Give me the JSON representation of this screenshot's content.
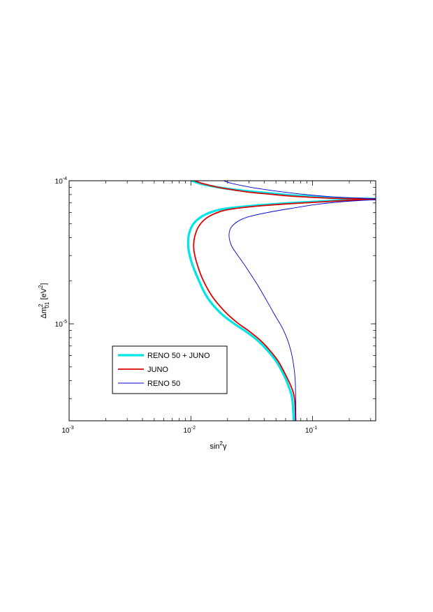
{
  "chart_data": {
    "type": "line",
    "xlabel": {
      "base": "sin",
      "sup": "2",
      "tail": "γ"
    },
    "ylabel": {
      "pre": "Δm",
      "sup": "2",
      "sub": "01",
      "post": " [eV",
      "sup2": "2",
      "close": "]"
    },
    "x_scale": "log",
    "y_scale": "log",
    "xlim": [
      0.001,
      0.33
    ],
    "ylim": [
      2.1e-06,
      0.0001
    ],
    "x_ticks": [
      {
        "value": 0.001,
        "base": "10",
        "exp": "-3"
      },
      {
        "value": 0.01,
        "base": "10",
        "exp": "-2"
      },
      {
        "value": 0.1,
        "base": "10",
        "exp": "-1"
      }
    ],
    "y_ticks": [
      {
        "value": 1e-05,
        "base": "10",
        "exp": "-5"
      },
      {
        "value": 0.0001,
        "base": "10",
        "exp": "-4"
      }
    ],
    "grid": false,
    "legend_position": "bottom-left",
    "series": [
      {
        "name": "RENO 50 + JUNO",
        "color": "#00e5e5",
        "width": 3.2,
        "x": [
          0.07,
          0.068,
          0.064,
          0.058,
          0.05,
          0.042,
          0.035,
          0.028,
          0.022,
          0.017,
          0.0135,
          0.0115,
          0.0102,
          0.0096,
          0.0095,
          0.0098,
          0.0106,
          0.0122,
          0.0148,
          0.0185,
          0.03,
          0.06,
          0.12,
          0.2,
          0.33
        ],
        "y": [
          2.1e-06,
          3e-06,
          3.6e-06,
          4.4e-06,
          5.5e-06,
          6.6e-06,
          7.7e-06,
          8.9e-06,
          1.02e-05,
          1.22e-05,
          1.55e-05,
          2.05e-05,
          2.65e-05,
          3.25e-05,
          3.85e-05,
          4.45e-05,
          5.05e-05,
          5.6e-05,
          6.05e-05,
          6.35e-05,
          6.65e-05,
          6.95e-05,
          7.18e-05,
          7.35e-05,
          7.45e-05
        ]
      },
      {
        "name": "",
        "color": "#00e5e5",
        "width": 3.2,
        "x": [
          0.0102,
          0.011,
          0.0125,
          0.015,
          0.019,
          0.026,
          0.04,
          0.06,
          0.09,
          0.13,
          0.2,
          0.33
        ],
        "y": [
          0.0001,
          9.75e-05,
          9.45e-05,
          9.15e-05,
          8.85e-05,
          8.55e-05,
          8.25e-05,
          7.98e-05,
          7.78e-05,
          7.62e-05,
          7.52e-05,
          7.46e-05
        ]
      },
      {
        "name": "JUNO",
        "color": "#dd0000",
        "width": 1.8,
        "x": [
          0.0725,
          0.071,
          0.067,
          0.06,
          0.052,
          0.044,
          0.037,
          0.03,
          0.024,
          0.019,
          0.015,
          0.0125,
          0.0112,
          0.0106,
          0.0106,
          0.011,
          0.0118,
          0.0133,
          0.0158,
          0.0195,
          0.031,
          0.06,
          0.12,
          0.2,
          0.33
        ],
        "y": [
          2.1e-06,
          3e-06,
          3.6e-06,
          4.4e-06,
          5.5e-06,
          6.6e-06,
          7.7e-06,
          8.9e-06,
          1.02e-05,
          1.22e-05,
          1.55e-05,
          2.05e-05,
          2.65e-05,
          3.25e-05,
          3.8e-05,
          4.35e-05,
          4.9e-05,
          5.45e-05,
          5.9e-05,
          6.25e-05,
          6.58e-05,
          6.88e-05,
          7.12e-05,
          7.3e-05,
          7.42e-05
        ]
      },
      {
        "name": "",
        "color": "#dd0000",
        "width": 1.8,
        "x": [
          0.0108,
          0.012,
          0.014,
          0.017,
          0.022,
          0.03,
          0.045,
          0.065,
          0.1,
          0.15,
          0.22,
          0.33
        ],
        "y": [
          0.0001,
          9.65e-05,
          9.32e-05,
          8.98e-05,
          8.65e-05,
          8.32e-05,
          8.05e-05,
          7.82e-05,
          7.65e-05,
          7.54e-05,
          7.48e-05,
          7.44e-05
        ]
      },
      {
        "name": "RENO 50",
        "color": "#0000cc",
        "width": 0.9,
        "x": [
          0.073,
          0.072,
          0.069,
          0.064,
          0.057,
          0.049,
          0.042,
          0.036,
          0.031,
          0.027,
          0.024,
          0.0218,
          0.0208,
          0.0206,
          0.0212,
          0.0228,
          0.0258,
          0.031,
          0.045,
          0.07,
          0.11,
          0.17,
          0.25,
          0.33
        ],
        "y": [
          2.1e-06,
          4e-06,
          5.5e-06,
          7.2e-06,
          9.2e-06,
          1.15e-05,
          1.45e-05,
          1.82e-05,
          2.22e-05,
          2.65e-05,
          3.05e-05,
          3.45e-05,
          3.85e-05,
          4.25e-05,
          4.65e-05,
          5e-05,
          5.35e-05,
          5.65e-05,
          6.05e-05,
          6.45e-05,
          6.85e-05,
          7.12e-05,
          7.28e-05,
          7.36e-05
        ]
      },
      {
        "name": "",
        "color": "#0000cc",
        "width": 0.9,
        "x": [
          0.0185,
          0.022,
          0.03,
          0.045,
          0.07,
          0.1,
          0.14,
          0.2,
          0.27,
          0.33
        ],
        "y": [
          0.0001,
          9.55e-05,
          9.05e-05,
          8.58e-05,
          8.18e-05,
          7.92e-05,
          7.74e-05,
          7.61e-05,
          7.54e-05,
          7.5e-05
        ]
      }
    ]
  }
}
